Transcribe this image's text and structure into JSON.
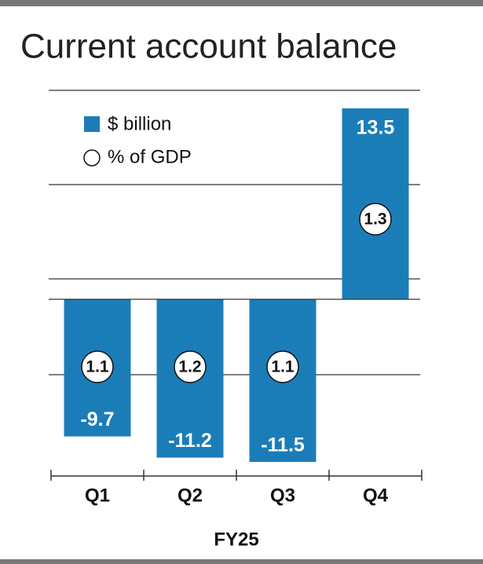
{
  "chart_data": {
    "type": "bar",
    "title": "Current account balance",
    "categories": [
      "Q1",
      "Q2",
      "Q3",
      "Q4"
    ],
    "x_label": "FY25",
    "series": [
      {
        "name": "$ billion",
        "color": "#1b7db8",
        "values": [
          -9.7,
          -11.2,
          -11.5,
          13.5
        ]
      },
      {
        "name": "% of GDP",
        "color": "#ffffff",
        "values": [
          1.1,
          1.2,
          1.1,
          1.3
        ]
      }
    ],
    "ylim": [
      -12,
      15
    ]
  }
}
